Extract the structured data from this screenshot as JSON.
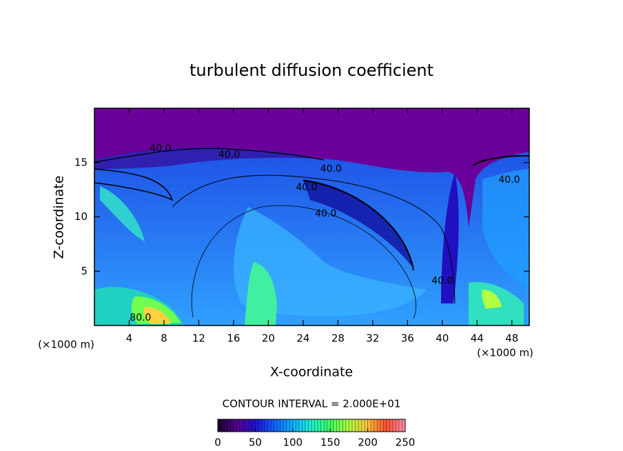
{
  "chart_data": {
    "type": "contour",
    "title": "turbulent diffusion coefficient",
    "x_label": "X-coordinate",
    "y_label": "Z-coordinate",
    "xunit": "(×1000 m)",
    "yunit": "(×1000 m)",
    "xlim": [
      0,
      50
    ],
    "ylim": [
      0,
      20
    ],
    "xticks": [
      4,
      8,
      12,
      16,
      20,
      24,
      28,
      32,
      36,
      40,
      44,
      48
    ],
    "yticks": [
      5,
      10,
      15
    ],
    "contour_interval_text": "CONTOUR INTERVAL = 2.000E+01",
    "contour_labels": [
      {
        "x": 7.6,
        "y": 16.3,
        "value": 40,
        "label": "40.0"
      },
      {
        "x": 15.5,
        "y": 15.7,
        "value": 40,
        "label": "40.0"
      },
      {
        "x": 27.2,
        "y": 14.4,
        "value": 40,
        "label": "40.0"
      },
      {
        "x": 24.4,
        "y": 12.7,
        "value": 40,
        "label": "40.0"
      },
      {
        "x": 26.6,
        "y": 10.3,
        "value": 40,
        "label": "40.0"
      },
      {
        "x": 40.0,
        "y": 4.1,
        "value": 40,
        "label": "40.0"
      },
      {
        "x": 47.7,
        "y": 13.4,
        "value": 40,
        "label": "40.0"
      },
      {
        "x": 5.3,
        "y": 0.7,
        "value": 80,
        "label": "80.0"
      }
    ],
    "clim": [
      0,
      250
    ],
    "cticks": [
      0,
      50,
      100,
      150,
      200,
      250
    ],
    "colormap": [
      "#14002a",
      "#5a008c",
      "#2010d0",
      "#1060ff",
      "#10b0ff",
      "#20f0d0",
      "#40ff60",
      "#b0ff40",
      "#ffc040",
      "#ff5030",
      "#ff90b0"
    ]
  }
}
